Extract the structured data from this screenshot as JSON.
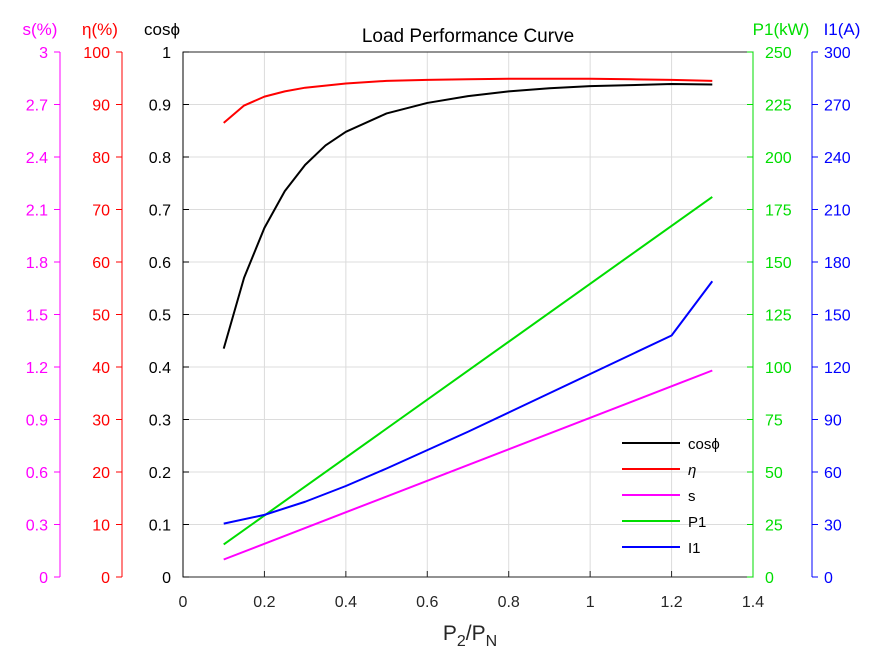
{
  "chart_data": {
    "type": "line",
    "title": "Load Performance Curve",
    "xlabel": "P2/PN",
    "xlim": [
      0,
      1.4
    ],
    "xticks": [
      "0",
      "0.2",
      "0.4",
      "0.6",
      "0.8",
      "1",
      "1.2",
      "1.4"
    ],
    "grid": true,
    "legend_position": "bottom-right",
    "axes": [
      {
        "id": "s",
        "side": "left",
        "label": "s(%)",
        "color": "#ff00ff",
        "ylim": [
          0,
          3
        ],
        "ticks": [
          "0",
          "0.3",
          "0.6",
          "0.9",
          "1.2",
          "1.5",
          "1.8",
          "2.1",
          "2.4",
          "2.7",
          "3"
        ]
      },
      {
        "id": "eta",
        "side": "left",
        "label": "η(%)",
        "color": "#ff0000",
        "ylim": [
          0,
          100
        ],
        "ticks": [
          "0",
          "10",
          "20",
          "30",
          "40",
          "50",
          "60",
          "70",
          "80",
          "90",
          "100"
        ]
      },
      {
        "id": "cos",
        "side": "left",
        "label": "cosϕ",
        "color": "#000000",
        "ylim": [
          0,
          1
        ],
        "ticks": [
          "0",
          "0.1",
          "0.2",
          "0.3",
          "0.4",
          "0.5",
          "0.6",
          "0.7",
          "0.8",
          "0.9",
          "1"
        ]
      },
      {
        "id": "p1",
        "side": "right",
        "label": "P1(kW)",
        "color": "#00dd00",
        "ylim": [
          0,
          250
        ],
        "ticks": [
          "0",
          "25",
          "50",
          "75",
          "100",
          "125",
          "150",
          "175",
          "200",
          "225",
          "250"
        ]
      },
      {
        "id": "i1",
        "side": "right",
        "label": "I1(A)",
        "color": "#0000ff",
        "ylim": [
          0,
          300
        ],
        "ticks": [
          "0",
          "30",
          "60",
          "90",
          "120",
          "150",
          "180",
          "210",
          "240",
          "270",
          "300"
        ]
      }
    ],
    "series": [
      {
        "name": "cosϕ",
        "axis": "cos",
        "color": "#000000",
        "x": [
          0.1,
          0.15,
          0.2,
          0.25,
          0.3,
          0.35,
          0.4,
          0.5,
          0.6,
          0.7,
          0.8,
          0.9,
          1.0,
          1.1,
          1.2,
          1.3
        ],
        "y": [
          0.435,
          0.57,
          0.665,
          0.735,
          0.785,
          0.822,
          0.848,
          0.883,
          0.903,
          0.916,
          0.925,
          0.931,
          0.935,
          0.937,
          0.939,
          0.938
        ]
      },
      {
        "name": "η",
        "axis": "eta",
        "color": "#ff0000",
        "x": [
          0.1,
          0.15,
          0.2,
          0.25,
          0.3,
          0.4,
          0.5,
          0.6,
          0.7,
          0.8,
          0.9,
          1.0,
          1.1,
          1.2,
          1.3
        ],
        "y": [
          86.5,
          89.8,
          91.5,
          92.5,
          93.2,
          94.0,
          94.5,
          94.7,
          94.8,
          94.9,
          94.9,
          94.9,
          94.8,
          94.7,
          94.5
        ]
      },
      {
        "name": "s",
        "axis": "s",
        "color": "#ff00ff",
        "x": [
          0.1,
          1.3
        ],
        "y": [
          0.1,
          1.18
        ]
      },
      {
        "name": "P1",
        "axis": "p1",
        "color": "#00dd00",
        "x": [
          0.1,
          1.3
        ],
        "y": [
          15.5,
          181
        ]
      },
      {
        "name": "I1",
        "axis": "i1",
        "color": "#0000ff",
        "x": [
          0.1,
          0.2,
          0.3,
          0.4,
          0.5,
          0.6,
          0.7,
          0.8,
          0.9,
          1.0,
          1.1,
          1.2,
          1.3
        ],
        "y": [
          30.5,
          35.5,
          43.0,
          52.0,
          62.0,
          72.5,
          83.0,
          94.0,
          105.0,
          116.0,
          127.0,
          138.0,
          169.0
        ]
      }
    ]
  }
}
